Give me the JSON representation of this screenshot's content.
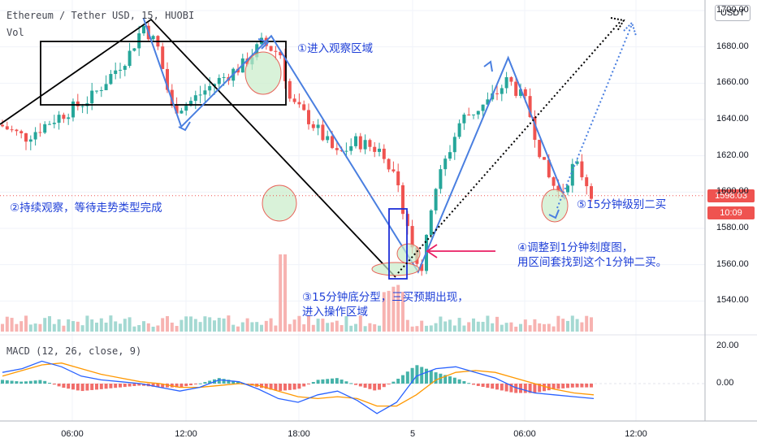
{
  "header": {
    "title": "Ethereum / Tether USD, 15, HUOBI",
    "vol_label": "Vol",
    "macd_label": "MACD (12, 26, close, 9)"
  },
  "currency_button": "USDT",
  "price_badge": "1598.03",
  "time_badge": "10:09",
  "annotations": {
    "a1": "①进入观察区域",
    "a2": "②持续观察，等待走势类型完成",
    "a3_line1": "③15分钟底分型，三买预期出现，",
    "a3_line2": "进入操作区域",
    "a4_line1": "④调整到1分钟刻度图，",
    "a4_line2": "用区间套找到这个1分钟二买。",
    "a5": "⑤15分钟级别二买"
  },
  "colors": {
    "up": "#26a69a",
    "down": "#ef5350",
    "vol_up": "#a4d9d2",
    "vol_down": "#f7b3b1",
    "annotation": "#1e3fd8",
    "swing_line": "#4a7fe0",
    "macd_line": "#2962ff",
    "signal_line": "#ff9800",
    "highlight_fill": "#c9edc9",
    "highlight_stroke": "#e8645a",
    "badge_price": "#ef5350",
    "badge_time": "#ef5350",
    "pink_arrow": "#e91e63"
  },
  "chart_data": {
    "type": "candlestick",
    "title": "Ethereum / Tether USD, 15, HUOBI",
    "y_axis_ticks": [
      "1700.00",
      "1680.00",
      "1660.00",
      "1640.00",
      "1620.00",
      "1600.00",
      "1580.00",
      "1560.00",
      "1540.00"
    ],
    "x_axis_ticks": [
      "06:00",
      "12:00",
      "18:00",
      "5",
      "06:00",
      "12:00"
    ],
    "macd_axis_ticks": [
      "20.00",
      "0.00"
    ],
    "ylim": [
      1528,
      1702
    ],
    "last_price": 1598.03,
    "price_path": [
      {
        "x": "02:00",
        "y": 1638
      },
      {
        "x": "03:30",
        "y": 1630
      },
      {
        "x": "05:00",
        "y": 1640
      },
      {
        "x": "07:00",
        "y": 1652
      },
      {
        "x": "09:00",
        "y": 1676
      },
      {
        "x": "09:45",
        "y": 1692
      },
      {
        "x": "10:30",
        "y": 1680
      },
      {
        "x": "11:15",
        "y": 1646
      },
      {
        "x": "12:00",
        "y": 1648
      },
      {
        "x": "13:30",
        "y": 1660
      },
      {
        "x": "15:00",
        "y": 1670
      },
      {
        "x": "16:00",
        "y": 1682
      },
      {
        "x": "17:00",
        "y": 1676
      },
      {
        "x": "17:30",
        "y": 1650
      },
      {
        "x": "18:30",
        "y": 1640
      },
      {
        "x": "20:00",
        "y": 1620
      },
      {
        "x": "21:00",
        "y": 1628
      },
      {
        "x": "22:30",
        "y": 1622
      },
      {
        "x": "23:30",
        "y": 1590
      },
      {
        "x": "00:15",
        "y": 1560
      },
      {
        "x": "00:30",
        "y": 1558
      },
      {
        "x": "01:00",
        "y": 1598
      },
      {
        "x": "02:30",
        "y": 1640
      },
      {
        "x": "04:00",
        "y": 1650
      },
      {
        "x": "05:00",
        "y": 1662
      },
      {
        "x": "06:00",
        "y": 1648
      },
      {
        "x": "07:00",
        "y": 1610
      },
      {
        "x": "07:45",
        "y": 1598
      },
      {
        "x": "08:30",
        "y": 1616
      },
      {
        "x": "09:00",
        "y": 1608
      },
      {
        "x": "09:30",
        "y": 1598
      }
    ],
    "swing_points": [
      {
        "x": "09:45",
        "y": 1696
      },
      {
        "x": "11:45",
        "y": 1636
      },
      {
        "x": "16:30",
        "y": 1686
      },
      {
        "x": "00:15",
        "y": 1556
      },
      {
        "x": "05:00",
        "y": 1674
      },
      {
        "x": "08:00",
        "y": 1596
      }
    ],
    "volume_scale": "relative",
    "macd": {
      "macd_line": [
        6,
        8,
        12,
        9,
        4,
        2,
        1,
        0,
        -2,
        -4,
        -2,
        2,
        1,
        -3,
        -8,
        -10,
        -6,
        -4,
        -9,
        -16,
        -10,
        4,
        8,
        9,
        6,
        3,
        -2,
        -5,
        -6,
        -7,
        -8
      ],
      "signal_line": [
        4,
        7,
        10,
        11,
        8,
        5,
        3,
        1,
        0,
        -2,
        -2,
        -1,
        0,
        -1,
        -4,
        -7,
        -8,
        -7,
        -8,
        -12,
        -12,
        -6,
        2,
        6,
        7,
        6,
        3,
        0,
        -3,
        -5,
        -6
      ]
    }
  }
}
